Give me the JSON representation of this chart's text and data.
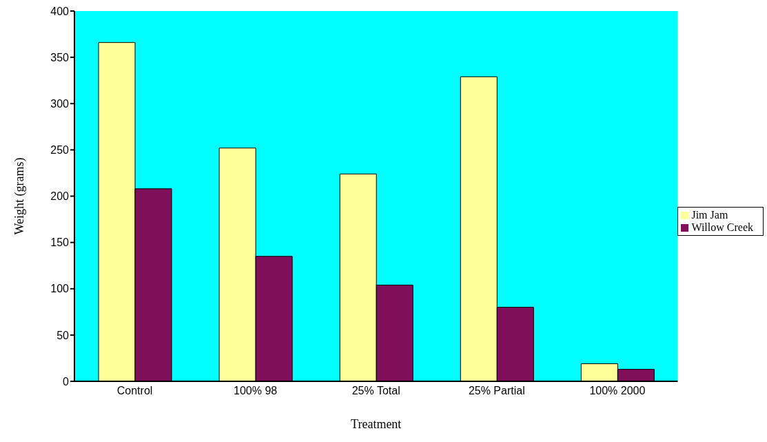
{
  "chart_data": {
    "type": "bar",
    "xlabel": "Treatment",
    "ylabel": "Weight (grams)",
    "categories": [
      "Control",
      "100% 98",
      "25% Total",
      "25% Partial",
      "100% 2000"
    ],
    "series": [
      {
        "name": "Jim Jam",
        "color": "#ffff99",
        "values": [
          366,
          252,
          224,
          329,
          19
        ]
      },
      {
        "name": "Willow Creek",
        "color": "#800f5a",
        "values": [
          208,
          135,
          104,
          80,
          13
        ]
      }
    ],
    "ylim": [
      0,
      400
    ],
    "yticks": [
      0,
      50,
      100,
      150,
      200,
      250,
      300,
      350,
      400
    ],
    "grid": false,
    "legend": "right"
  }
}
